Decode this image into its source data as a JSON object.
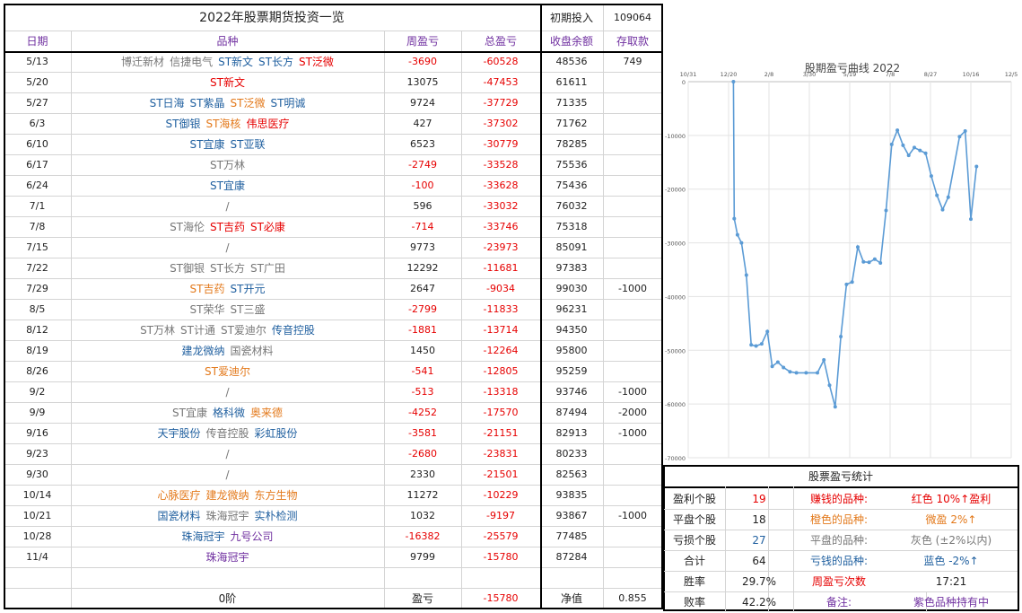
{
  "header": {
    "title": "2022年股票期货投资一览",
    "init_label": "初期投入",
    "init_value": "109064"
  },
  "columns": [
    "日期",
    "品种",
    "周盈亏",
    "总盈亏",
    "收盘余额",
    "存取款"
  ],
  "rows": [
    {
      "date": "5/13",
      "items": [
        {
          "t": "博迁新材",
          "c": "g"
        },
        {
          "t": "信捷电气",
          "c": "g"
        },
        {
          "t": "ST新文",
          "c": "b"
        },
        {
          "t": "ST长方",
          "c": "b"
        },
        {
          "t": "ST泛微",
          "c": "r"
        }
      ],
      "week": "-3690",
      "total": "-60528",
      "balance": "48536",
      "deposit": "749"
    },
    {
      "date": "5/20",
      "items": [
        {
          "t": "ST新文",
          "c": "r"
        }
      ],
      "week": "13075",
      "total": "-47453",
      "balance": "61611",
      "deposit": ""
    },
    {
      "date": "5/27",
      "items": [
        {
          "t": "ST日海",
          "c": "b"
        },
        {
          "t": "ST紫晶",
          "c": "b"
        },
        {
          "t": "ST泛微",
          "c": "o"
        },
        {
          "t": "ST明诚",
          "c": "b"
        }
      ],
      "week": "9724",
      "total": "-37729",
      "balance": "71335",
      "deposit": ""
    },
    {
      "date": "6/3",
      "items": [
        {
          "t": "ST御银",
          "c": "b"
        },
        {
          "t": "ST海核",
          "c": "o"
        },
        {
          "t": "伟思医疗",
          "c": "r"
        }
      ],
      "week": "427",
      "total": "-37302",
      "balance": "71762",
      "deposit": ""
    },
    {
      "date": "6/10",
      "items": [
        {
          "t": "ST宜康",
          "c": "b"
        },
        {
          "t": "ST亚联",
          "c": "b"
        }
      ],
      "week": "6523",
      "total": "-30779",
      "balance": "78285",
      "deposit": ""
    },
    {
      "date": "6/17",
      "items": [
        {
          "t": "ST万林",
          "c": "g"
        }
      ],
      "week": "-2749",
      "total": "-33528",
      "balance": "75536",
      "deposit": ""
    },
    {
      "date": "6/24",
      "items": [
        {
          "t": "ST宜康",
          "c": "b"
        }
      ],
      "week": "-100",
      "total": "-33628",
      "balance": "75436",
      "deposit": ""
    },
    {
      "date": "7/1",
      "items": [
        {
          "t": "/",
          "c": "g"
        }
      ],
      "week": "596",
      "total": "-33032",
      "balance": "76032",
      "deposit": ""
    },
    {
      "date": "7/8",
      "items": [
        {
          "t": "ST海伦",
          "c": "g"
        },
        {
          "t": "ST吉药",
          "c": "r"
        },
        {
          "t": "ST必康",
          "c": "r"
        }
      ],
      "week": "-714",
      "total": "-33746",
      "balance": "75318",
      "deposit": ""
    },
    {
      "date": "7/15",
      "items": [
        {
          "t": "/",
          "c": "g"
        }
      ],
      "week": "9773",
      "total": "-23973",
      "balance": "85091",
      "deposit": ""
    },
    {
      "date": "7/22",
      "items": [
        {
          "t": "ST御银",
          "c": "g"
        },
        {
          "t": "ST长方",
          "c": "g"
        },
        {
          "t": "ST广田",
          "c": "g"
        }
      ],
      "week": "12292",
      "total": "-11681",
      "balance": "97383",
      "deposit": ""
    },
    {
      "date": "7/29",
      "items": [
        {
          "t": "ST吉药",
          "c": "o"
        },
        {
          "t": "ST开元",
          "c": "b"
        }
      ],
      "week": "2647",
      "total": "-9034",
      "balance": "99030",
      "deposit": "-1000"
    },
    {
      "date": "8/5",
      "items": [
        {
          "t": "ST荣华",
          "c": "g"
        },
        {
          "t": "ST三盛",
          "c": "g"
        }
      ],
      "week": "-2799",
      "total": "-11833",
      "balance": "96231",
      "deposit": ""
    },
    {
      "date": "8/12",
      "items": [
        {
          "t": "ST万林",
          "c": "g"
        },
        {
          "t": "ST计通",
          "c": "g"
        },
        {
          "t": "ST爱迪尔",
          "c": "g"
        },
        {
          "t": "传音控股",
          "c": "b"
        }
      ],
      "week": "-1881",
      "total": "-13714",
      "balance": "94350",
      "deposit": ""
    },
    {
      "date": "8/19",
      "items": [
        {
          "t": "建龙微纳",
          "c": "b"
        },
        {
          "t": "国瓷材料",
          "c": "g"
        }
      ],
      "week": "1450",
      "total": "-12264",
      "balance": "95800",
      "deposit": ""
    },
    {
      "date": "8/26",
      "items": [
        {
          "t": "ST爱迪尔",
          "c": "o"
        }
      ],
      "week": "-541",
      "total": "-12805",
      "balance": "95259",
      "deposit": ""
    },
    {
      "date": "9/2",
      "items": [
        {
          "t": "/",
          "c": "g"
        }
      ],
      "week": "-513",
      "total": "-13318",
      "balance": "93746",
      "deposit": "-1000"
    },
    {
      "date": "9/9",
      "items": [
        {
          "t": "ST宜康",
          "c": "g"
        },
        {
          "t": "格科微",
          "c": "b"
        },
        {
          "t": "奥来德",
          "c": "o"
        }
      ],
      "week": "-4252",
      "total": "-17570",
      "balance": "87494",
      "deposit": "-2000"
    },
    {
      "date": "9/16",
      "items": [
        {
          "t": "天宇股份",
          "c": "b"
        },
        {
          "t": "传音控股",
          "c": "g"
        },
        {
          "t": "彩虹股份",
          "c": "b"
        }
      ],
      "week": "-3581",
      "total": "-21151",
      "balance": "82913",
      "deposit": "-1000"
    },
    {
      "date": "9/23",
      "items": [
        {
          "t": "/",
          "c": "g"
        }
      ],
      "week": "-2680",
      "total": "-23831",
      "balance": "80233",
      "deposit": ""
    },
    {
      "date": "9/30",
      "items": [
        {
          "t": "/",
          "c": "g"
        }
      ],
      "week": "2330",
      "total": "-21501",
      "balance": "82563",
      "deposit": ""
    },
    {
      "date": "10/14",
      "items": [
        {
          "t": "心脉医疗",
          "c": "o"
        },
        {
          "t": "建龙微纳",
          "c": "o"
        },
        {
          "t": "东方生物",
          "c": "o"
        }
      ],
      "week": "11272",
      "total": "-10229",
      "balance": "93835",
      "deposit": ""
    },
    {
      "date": "10/21",
      "items": [
        {
          "t": "国瓷材料",
          "c": "b"
        },
        {
          "t": "珠海冠宇",
          "c": "g"
        },
        {
          "t": "实朴检测",
          "c": "b"
        }
      ],
      "week": "1032",
      "total": "-9197",
      "balance": "93867",
      "deposit": "-1000"
    },
    {
      "date": "10/28",
      "items": [
        {
          "t": "珠海冠宇",
          "c": "b"
        },
        {
          "t": "九号公司",
          "c": "p"
        }
      ],
      "week": "-16382",
      "total": "-25579",
      "balance": "77485",
      "deposit": ""
    },
    {
      "date": "11/4",
      "items": [
        {
          "t": "珠海冠宇",
          "c": "p"
        }
      ],
      "week": "9799",
      "total": "-15780",
      "balance": "87284",
      "deposit": ""
    }
  ],
  "footer": {
    "level": "0阶",
    "pnl_label": "盈亏",
    "pnl_value": "-15780",
    "net_label": "净值",
    "net_value": "0.855"
  },
  "stats": {
    "title": "股票盈亏统计",
    "profit_label": "盈利个股",
    "profit_count": "19",
    "flat_label": "平盘个股",
    "flat_count": "18",
    "loss_label": "亏损个股",
    "loss_count": "27",
    "sum_label": "合计",
    "sum_count": "64",
    "win_label": "胜率",
    "win_rate": "29.7%",
    "lose_label": "败率",
    "lose_rate": "42.2%",
    "red_label": "赚钱的品种:",
    "red_desc": "红色 10%↑盈利",
    "orange_label": "橙色的品种:",
    "orange_desc": "微盈 2%↑",
    "grey_label": "平盘的品种:",
    "grey_desc": "灰色 (±2%以内)",
    "blue_label": "亏钱的品种:",
    "blue_desc": "蓝色 -2%↑",
    "weeks_label": "周盈亏次数",
    "weeks_value": "17:21",
    "note_label": "备注:",
    "note_value": "紫色品种持有中"
  },
  "colors": {
    "red": "#e60000",
    "blue": "#1f5f9f",
    "grey": "#777777",
    "orange": "#e3791b",
    "purple": "#7030a0",
    "line": "#5b9bd5"
  },
  "chart_data": {
    "type": "line",
    "title": "股期盈亏曲线 2022",
    "xlabel": "",
    "ylabel": "",
    "x_ticks": [
      "10/31",
      "12/20",
      "2/8",
      "3/30",
      "5/19",
      "7/8",
      "8/27",
      "10/16",
      "12/5"
    ],
    "y_ticks": [
      "0",
      "-10000",
      "-20000",
      "-30000",
      "-40000",
      "-50000",
      "-60000",
      "-70000"
    ],
    "ylim": [
      -70000,
      0
    ],
    "grid": true,
    "series": [
      {
        "values": [
          0,
          -25500,
          -28500,
          -30000,
          -36000,
          -49000,
          -49200,
          -48800,
          -46500,
          -53000,
          -52200,
          -53200,
          -54000,
          -54200,
          -54200,
          -54200,
          -51800,
          -56500,
          -60528,
          -47453,
          -37729,
          -37302,
          -30779,
          -33528,
          -33628,
          -33032,
          -33746,
          -23973,
          -11681,
          -9034,
          -11833,
          -13714,
          -12264,
          -12805,
          -13318,
          -17570,
          -21151,
          -23831,
          -21501,
          -10229,
          -9197,
          -25579,
          -15780
        ],
        "x_days": [
          0,
          1,
          5,
          10,
          16,
          22,
          28,
          35,
          42,
          48,
          55,
          62,
          70,
          78,
          90,
          104,
          112,
          119,
          126,
          133,
          140,
          147,
          154,
          161,
          168,
          175,
          182,
          189,
          196,
          203,
          210,
          217,
          224,
          231,
          238,
          245,
          252,
          259,
          266,
          280,
          287,
          294,
          301
        ]
      }
    ]
  }
}
